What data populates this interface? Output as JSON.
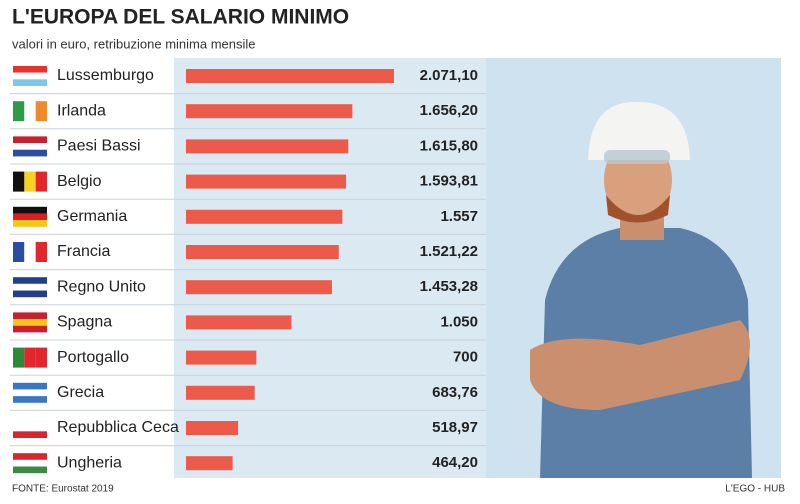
{
  "chart_data": {
    "type": "bar",
    "title": "L'EUROPA DEL SALARIO MINIMO",
    "subtitle": "valori in euro, retribuzione minima mensile",
    "categories": [
      "Lussemburgo",
      "Irlanda",
      "Paesi Bassi",
      "Belgio",
      "Germania",
      "Francia",
      "Regno Unito",
      "Spagna",
      "Portogallo",
      "Grecia",
      "Repubblica Ceca",
      "Ungheria"
    ],
    "values": [
      2071.1,
      1656.2,
      1615.8,
      1593.81,
      1557,
      1521.22,
      1453.28,
      1050,
      700,
      683.76,
      518.97,
      464.2
    ],
    "value_labels": [
      "2.071,10",
      "1.656,20",
      "1.615,80",
      "1.593,81",
      "1.557",
      "1.521,22",
      "1.453,28",
      "1.050",
      "700",
      "683,76",
      "518,97",
      "464,20"
    ],
    "color": "#ec5a4a",
    "source": "FONTE: Eurostat 2019",
    "credit": "L'EGO - HUB"
  }
}
